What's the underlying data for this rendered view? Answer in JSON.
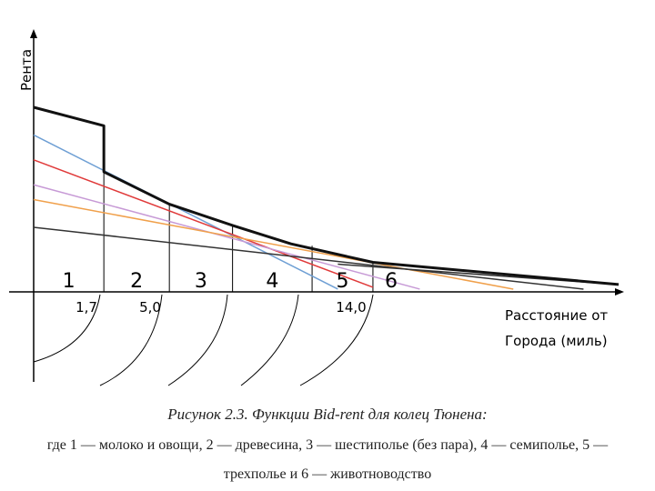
{
  "chart_data": {
    "type": "line",
    "ylabel": "Рента",
    "xlabel_line1": "Расстояние от",
    "xlabel_line2": "Города (миль)",
    "ticks": [
      {
        "x": 1.7,
        "label": "1,7"
      },
      {
        "x": 5.0,
        "label": "5,0"
      },
      {
        "x": 14.0,
        "label": "14,0"
      }
    ],
    "zones": [
      "1",
      "2",
      "3",
      "4",
      "5",
      "6"
    ],
    "series": [
      {
        "color": "#6e9fd4",
        "points": [
          [
            0,
            170
          ],
          [
            13,
            3
          ]
        ]
      },
      {
        "color": "#e03a3a",
        "points": [
          [
            0,
            143
          ],
          [
            14.5,
            5
          ]
        ]
      },
      {
        "color": "#c79ad6",
        "points": [
          [
            0,
            116
          ],
          [
            16.5,
            3
          ]
        ]
      },
      {
        "color": "#f0a04b",
        "points": [
          [
            0,
            100
          ],
          [
            20.5,
            3
          ]
        ]
      },
      {
        "color": "#333333",
        "points": [
          [
            0,
            70
          ],
          [
            23.5,
            3
          ]
        ]
      },
      {
        "color": "#333333",
        "points": [
          [
            13,
            30
          ],
          [
            25,
            8
          ]
        ]
      }
    ],
    "envelope": {
      "color": "#111111",
      "points": [
        [
          0,
          200
        ],
        [
          3,
          180
        ],
        [
          3,
          130
        ],
        [
          5.8,
          95
        ],
        [
          8.5,
          72
        ],
        [
          11,
          52
        ],
        [
          14.5,
          32
        ],
        [
          25,
          8
        ]
      ]
    },
    "zone_boundaries": [
      {
        "x": 0,
        "top": 200
      },
      {
        "x": 3,
        "top": 180
      },
      {
        "x": 5.8,
        "top": 95
      },
      {
        "x": 8.5,
        "top": 72
      },
      {
        "x": 11.9,
        "top": 50
      },
      {
        "x": 14.5,
        "top": 32
      }
    ]
  },
  "caption": {
    "title": "Рисунок 2.3. Функции Bid-rent для колец Тюнена:",
    "line1": "где 1 — молоко и овощи, 2 — древесина, 3 — шестиполье (без пара), 4 — семиполье, 5 —",
    "line2": "трехполье и 6 — животноводство"
  }
}
